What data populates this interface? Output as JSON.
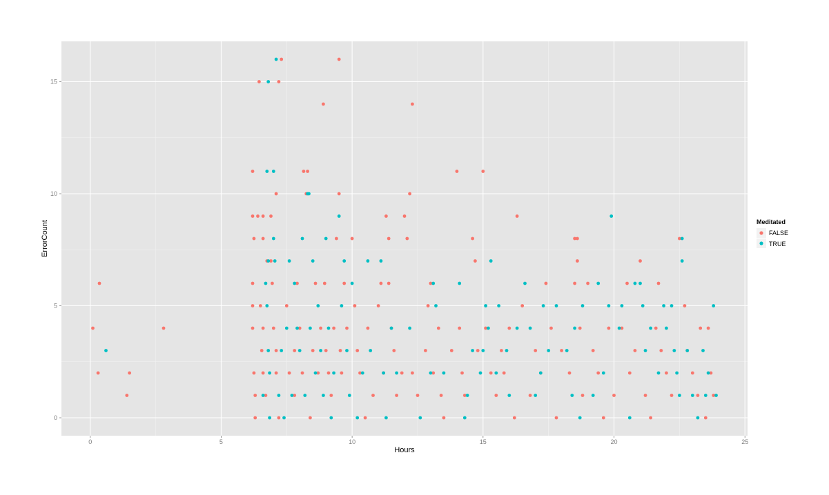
{
  "colors": {
    "panel": "#e5e5e5",
    "grid_major": "#ffffff",
    "grid_minor": "#f2f2f2",
    "tick_text": "#7f7f7f",
    "FALSE": "#F8766D",
    "TRUE": "#00BFC4"
  },
  "chart_data": {
    "type": "scatter",
    "title": "",
    "xlabel": "Hours",
    "ylabel": "ErrorCount",
    "xlim": [
      -1.1,
      25.1
    ],
    "ylim": [
      -0.8,
      16.8
    ],
    "x_ticks": [
      0,
      5,
      10,
      15,
      20,
      25
    ],
    "y_ticks": [
      0,
      5,
      10,
      15
    ],
    "grid": true,
    "legend": {
      "title": "Meditated",
      "position": "right",
      "entries": [
        "FALSE",
        "TRUE"
      ]
    },
    "series": [
      {
        "name": "FALSE",
        "points": [
          [
            0.1,
            4
          ],
          [
            0.3,
            2
          ],
          [
            0.35,
            6
          ],
          [
            1.4,
            1
          ],
          [
            1.5,
            2
          ],
          [
            2.8,
            4
          ],
          [
            6.2,
            11
          ],
          [
            6.2,
            9
          ],
          [
            6.25,
            8
          ],
          [
            6.2,
            6
          ],
          [
            6.2,
            5
          ],
          [
            6.2,
            4
          ],
          [
            6.25,
            2
          ],
          [
            6.3,
            1
          ],
          [
            6.3,
            0
          ],
          [
            6.4,
            9
          ],
          [
            6.45,
            15
          ],
          [
            6.5,
            5
          ],
          [
            6.55,
            3
          ],
          [
            6.6,
            2
          ],
          [
            6.6,
            9
          ],
          [
            6.6,
            8
          ],
          [
            6.6,
            4
          ],
          [
            6.7,
            1
          ],
          [
            6.75,
            7
          ],
          [
            6.9,
            9
          ],
          [
            6.9,
            7
          ],
          [
            6.95,
            6
          ],
          [
            7.0,
            4
          ],
          [
            7.1,
            10
          ],
          [
            7.1,
            3
          ],
          [
            7.2,
            15
          ],
          [
            7.3,
            16
          ],
          [
            7.1,
            2
          ],
          [
            7.2,
            0
          ],
          [
            7.5,
            5
          ],
          [
            7.6,
            2
          ],
          [
            7.8,
            3
          ],
          [
            7.8,
            1
          ],
          [
            7.9,
            6
          ],
          [
            8.0,
            4
          ],
          [
            8.1,
            2
          ],
          [
            8.15,
            11
          ],
          [
            8.25,
            10
          ],
          [
            8.3,
            11
          ],
          [
            8.4,
            0
          ],
          [
            8.5,
            3
          ],
          [
            8.6,
            6
          ],
          [
            8.7,
            2
          ],
          [
            8.8,
            4
          ],
          [
            8.9,
            14
          ],
          [
            8.95,
            6
          ],
          [
            9.0,
            3
          ],
          [
            9.1,
            2
          ],
          [
            9.2,
            1
          ],
          [
            9.3,
            4
          ],
          [
            9.4,
            8
          ],
          [
            9.5,
            16
          ],
          [
            9.5,
            10
          ],
          [
            9.55,
            3
          ],
          [
            9.6,
            2
          ],
          [
            9.7,
            6
          ],
          [
            9.8,
            4
          ],
          [
            10.0,
            8
          ],
          [
            10.1,
            5
          ],
          [
            10.2,
            3
          ],
          [
            10.3,
            2
          ],
          [
            10.5,
            0
          ],
          [
            10.6,
            4
          ],
          [
            10.8,
            1
          ],
          [
            11.0,
            5
          ],
          [
            11.1,
            6
          ],
          [
            11.2,
            2
          ],
          [
            11.3,
            9
          ],
          [
            11.4,
            8
          ],
          [
            11.4,
            6
          ],
          [
            11.5,
            4
          ],
          [
            11.6,
            3
          ],
          [
            11.7,
            1
          ],
          [
            11.9,
            2
          ],
          [
            12.0,
            9
          ],
          [
            12.1,
            8
          ],
          [
            12.2,
            10
          ],
          [
            12.3,
            14
          ],
          [
            12.3,
            2
          ],
          [
            12.5,
            1
          ],
          [
            12.8,
            3
          ],
          [
            12.9,
            5
          ],
          [
            13.0,
            6
          ],
          [
            13.1,
            2
          ],
          [
            13.3,
            4
          ],
          [
            13.4,
            1
          ],
          [
            13.5,
            0
          ],
          [
            13.8,
            3
          ],
          [
            14.0,
            11
          ],
          [
            14.1,
            4
          ],
          [
            14.2,
            2
          ],
          [
            14.3,
            1
          ],
          [
            14.6,
            8
          ],
          [
            14.7,
            7
          ],
          [
            14.8,
            3
          ],
          [
            15.0,
            11
          ],
          [
            15.1,
            4
          ],
          [
            15.3,
            2
          ],
          [
            15.5,
            1
          ],
          [
            15.7,
            3
          ],
          [
            15.8,
            2
          ],
          [
            16.0,
            4
          ],
          [
            16.2,
            0
          ],
          [
            16.3,
            9
          ],
          [
            16.5,
            5
          ],
          [
            16.8,
            1
          ],
          [
            17.0,
            3
          ],
          [
            17.2,
            2
          ],
          [
            17.4,
            6
          ],
          [
            17.6,
            4
          ],
          [
            17.8,
            0
          ],
          [
            18.0,
            3
          ],
          [
            18.3,
            2
          ],
          [
            18.5,
            8
          ],
          [
            18.6,
            8
          ],
          [
            18.6,
            7
          ],
          [
            18.5,
            6
          ],
          [
            18.7,
            4
          ],
          [
            18.8,
            1
          ],
          [
            19.0,
            6
          ],
          [
            19.2,
            3
          ],
          [
            19.4,
            2
          ],
          [
            19.6,
            0
          ],
          [
            19.8,
            4
          ],
          [
            20.0,
            1
          ],
          [
            20.3,
            4
          ],
          [
            20.5,
            6
          ],
          [
            20.6,
            2
          ],
          [
            20.8,
            3
          ],
          [
            21.0,
            7
          ],
          [
            21.2,
            1
          ],
          [
            21.4,
            0
          ],
          [
            21.6,
            4
          ],
          [
            21.7,
            6
          ],
          [
            21.8,
            3
          ],
          [
            22.0,
            2
          ],
          [
            22.2,
            1
          ],
          [
            22.5,
            8
          ],
          [
            22.7,
            5
          ],
          [
            22.8,
            3
          ],
          [
            23.0,
            2
          ],
          [
            23.2,
            1
          ],
          [
            23.3,
            4
          ],
          [
            23.5,
            0
          ],
          [
            23.6,
            4
          ],
          [
            23.7,
            2
          ],
          [
            23.8,
            1
          ]
        ]
      },
      {
        "name": "TRUE",
        "points": [
          [
            0.6,
            3
          ],
          [
            6.6,
            1
          ],
          [
            6.7,
            6
          ],
          [
            6.75,
            11
          ],
          [
            6.8,
            15
          ],
          [
            6.75,
            5
          ],
          [
            6.8,
            3
          ],
          [
            6.85,
            2
          ],
          [
            6.85,
            0
          ],
          [
            6.8,
            7
          ],
          [
            7.0,
            11
          ],
          [
            7.0,
            8
          ],
          [
            7.1,
            16
          ],
          [
            7.05,
            7
          ],
          [
            7.2,
            1
          ],
          [
            7.3,
            3
          ],
          [
            7.4,
            0
          ],
          [
            7.5,
            4
          ],
          [
            7.6,
            7
          ],
          [
            7.7,
            1
          ],
          [
            7.8,
            6
          ],
          [
            7.9,
            4
          ],
          [
            8.0,
            3
          ],
          [
            8.1,
            8
          ],
          [
            8.2,
            1
          ],
          [
            8.3,
            10
          ],
          [
            8.35,
            10
          ],
          [
            8.4,
            4
          ],
          [
            8.5,
            7
          ],
          [
            8.6,
            2
          ],
          [
            8.7,
            5
          ],
          [
            8.8,
            3
          ],
          [
            8.9,
            1
          ],
          [
            9.0,
            8
          ],
          [
            9.1,
            4
          ],
          [
            9.2,
            0
          ],
          [
            9.3,
            2
          ],
          [
            9.5,
            9
          ],
          [
            9.6,
            5
          ],
          [
            9.7,
            7
          ],
          [
            9.8,
            3
          ],
          [
            9.9,
            1
          ],
          [
            10.0,
            6
          ],
          [
            10.2,
            0
          ],
          [
            10.4,
            2
          ],
          [
            10.6,
            7
          ],
          [
            10.7,
            3
          ],
          [
            11.1,
            7
          ],
          [
            11.2,
            2
          ],
          [
            11.3,
            0
          ],
          [
            11.5,
            4
          ],
          [
            11.7,
            2
          ],
          [
            12.2,
            4
          ],
          [
            12.6,
            0
          ],
          [
            13.0,
            2
          ],
          [
            13.1,
            6
          ],
          [
            13.2,
            5
          ],
          [
            13.5,
            2
          ],
          [
            14.1,
            6
          ],
          [
            14.3,
            0
          ],
          [
            14.4,
            1
          ],
          [
            14.6,
            3
          ],
          [
            14.9,
            2
          ],
          [
            15.0,
            3
          ],
          [
            15.1,
            5
          ],
          [
            15.2,
            4
          ],
          [
            15.3,
            7
          ],
          [
            15.5,
            2
          ],
          [
            15.6,
            5
          ],
          [
            15.9,
            3
          ],
          [
            16.0,
            1
          ],
          [
            16.3,
            4
          ],
          [
            16.6,
            6
          ],
          [
            16.8,
            4
          ],
          [
            17.0,
            1
          ],
          [
            17.2,
            2
          ],
          [
            17.3,
            5
          ],
          [
            17.5,
            3
          ],
          [
            17.8,
            5
          ],
          [
            18.2,
            3
          ],
          [
            18.4,
            1
          ],
          [
            18.5,
            4
          ],
          [
            18.7,
            0
          ],
          [
            18.8,
            5
          ],
          [
            19.2,
            1
          ],
          [
            19.4,
            6
          ],
          [
            19.6,
            2
          ],
          [
            19.9,
            9
          ],
          [
            19.8,
            5
          ],
          [
            20.2,
            4
          ],
          [
            20.3,
            5
          ],
          [
            20.6,
            0
          ],
          [
            20.8,
            6
          ],
          [
            21.0,
            6
          ],
          [
            21.1,
            5
          ],
          [
            21.2,
            3
          ],
          [
            21.4,
            4
          ],
          [
            21.7,
            2
          ],
          [
            21.9,
            5
          ],
          [
            22.0,
            4
          ],
          [
            22.2,
            5
          ],
          [
            22.3,
            3
          ],
          [
            22.4,
            2
          ],
          [
            22.5,
            1
          ],
          [
            22.6,
            8
          ],
          [
            22.6,
            7
          ],
          [
            22.8,
            3
          ],
          [
            23.0,
            1
          ],
          [
            23.2,
            0
          ],
          [
            23.4,
            3
          ],
          [
            23.5,
            1
          ],
          [
            23.6,
            2
          ],
          [
            23.8,
            5
          ],
          [
            23.9,
            1
          ]
        ]
      }
    ]
  }
}
